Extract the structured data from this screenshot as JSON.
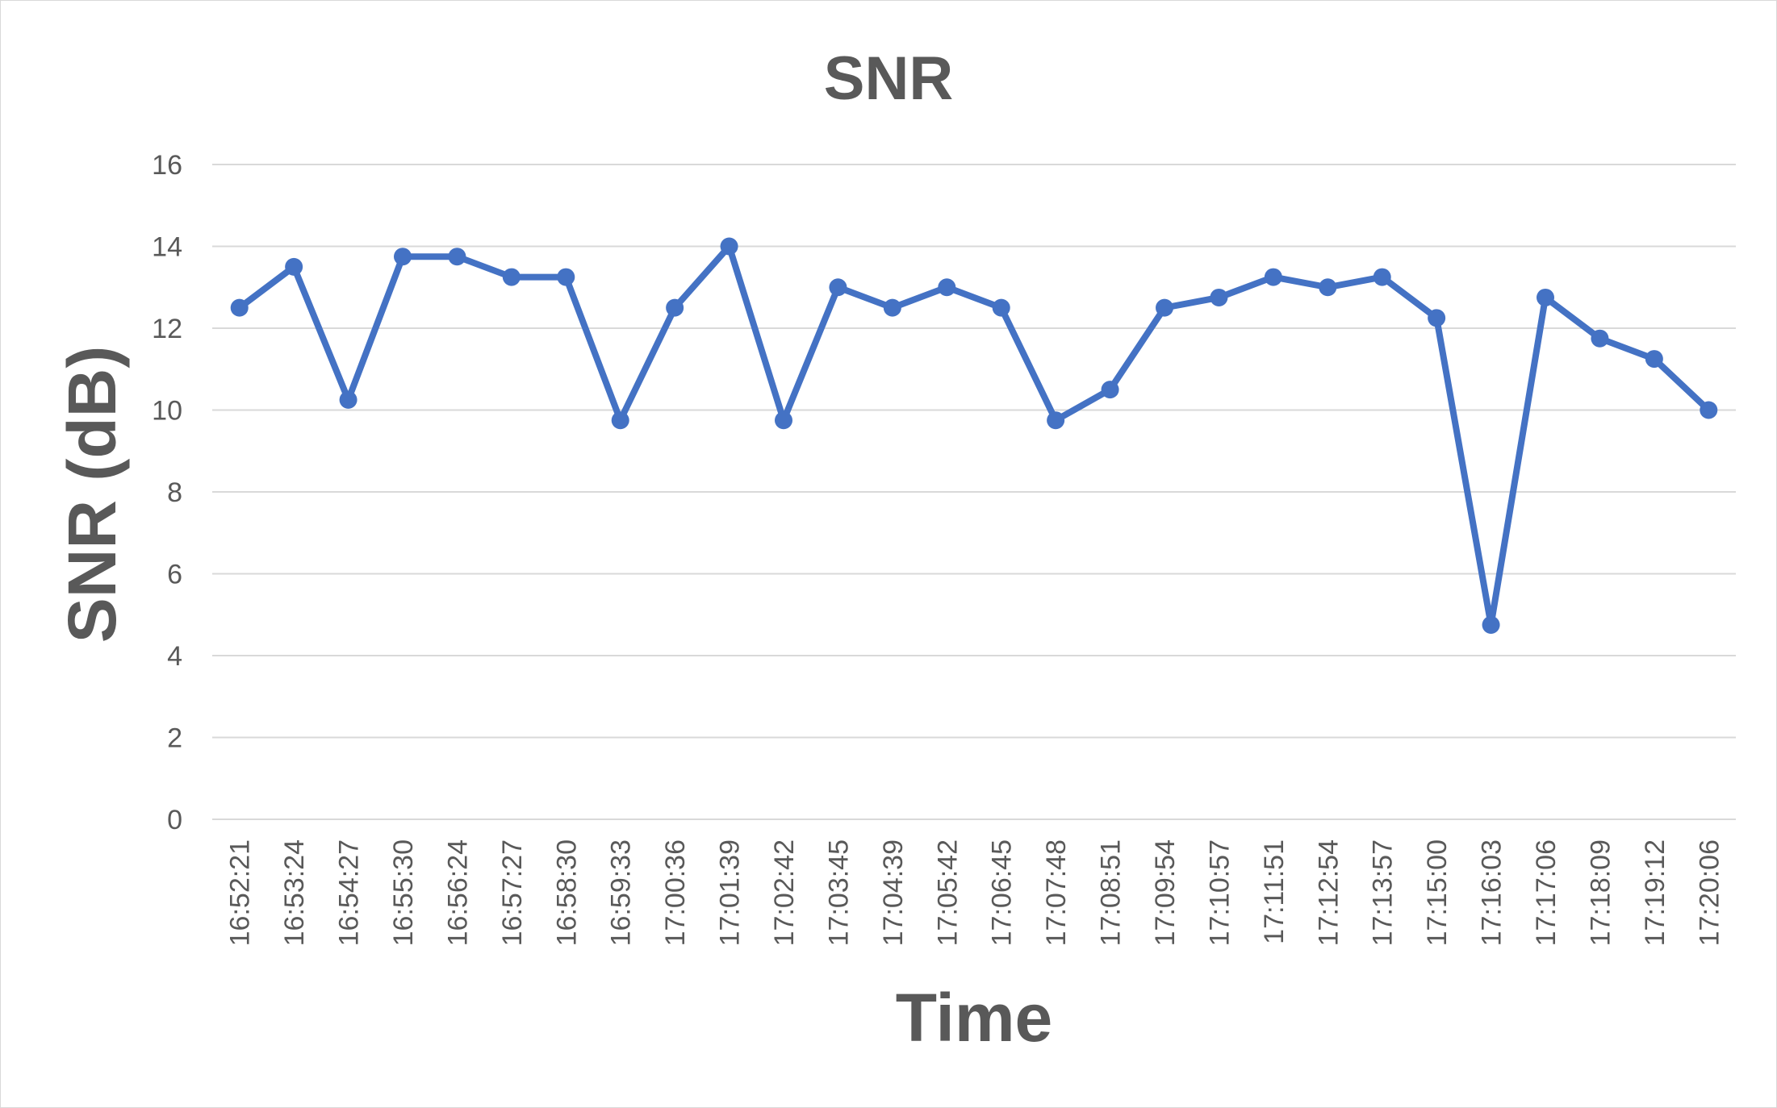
{
  "chart_data": {
    "type": "line",
    "title": "SNR",
    "xlabel": "Time",
    "ylabel": "SNR (dB)",
    "ylim": [
      0,
      16
    ],
    "yticks": [
      0,
      2,
      4,
      6,
      8,
      10,
      12,
      14,
      16
    ],
    "grid": true,
    "legend": "none",
    "categories": [
      "16:52:21",
      "16:53:24",
      "16:54:27",
      "16:55:30",
      "16:56:24",
      "16:57:27",
      "16:58:30",
      "16:59:33",
      "17:00:36",
      "17:01:39",
      "17:02:42",
      "17:03:45",
      "17:04:39",
      "17:05:42",
      "17:06:45",
      "17:07:48",
      "17:08:51",
      "17:09:54",
      "17:10:57",
      "17:11:51",
      "17:12:54",
      "17:13:57",
      "17:15:00",
      "17:16:03",
      "17:17:06",
      "17:18:09",
      "17:19:12",
      "17:20:06"
    ],
    "series": [
      {
        "color": "#4472c4",
        "values": [
          12.5,
          13.5,
          10.25,
          13.75,
          13.75,
          13.25,
          13.25,
          9.75,
          12.5,
          14.0,
          9.75,
          13.0,
          12.5,
          13.0,
          12.5,
          9.75,
          10.5,
          12.5,
          12.75,
          13.25,
          13.0,
          13.25,
          12.25,
          4.75,
          12.75,
          11.75,
          11.25,
          10.0
        ]
      }
    ]
  }
}
